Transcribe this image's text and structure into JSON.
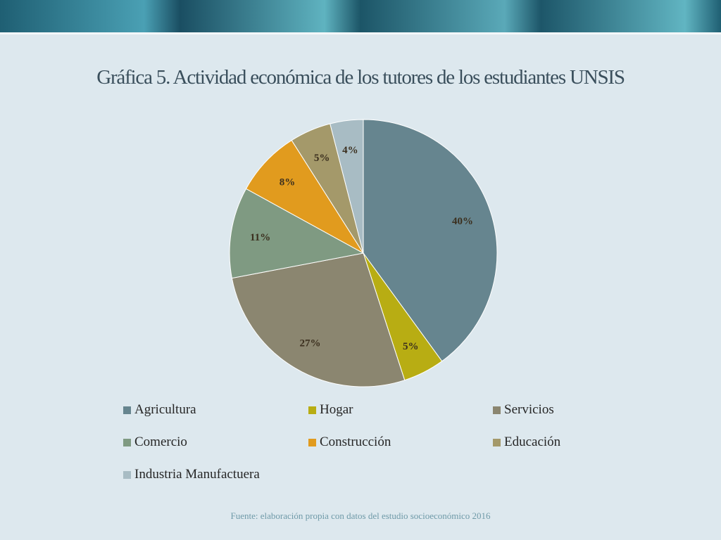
{
  "slide": {
    "title": "Gráfica  5. Actividad económica de los tutores de los estudiantes UNSIS",
    "source": "Fuente: elaboración propia con datos del estudio socioeconómico 2016"
  },
  "chart_data": {
    "type": "pie",
    "title": "Gráfica  5. Actividad económica de los tutores de los estudiantes UNSIS",
    "legend_position": "bottom",
    "categories": [
      "Agricultura",
      "Hogar",
      "Servicios",
      "Comercio",
      "Construcción",
      "Educación",
      "Industria Manufactuera"
    ],
    "values": [
      40,
      5,
      27,
      11,
      8,
      5,
      4
    ],
    "data_labels": [
      "40%",
      "5%",
      "27%",
      "11%",
      "8%",
      "5%",
      "4%"
    ],
    "colors": [
      "#66858f",
      "#b8ad13",
      "#8b8670",
      "#7f9a82",
      "#e19b1e",
      "#a4996a",
      "#a8bcc4"
    ],
    "start_angle": "12 o'clock",
    "direction": "clockwise"
  }
}
